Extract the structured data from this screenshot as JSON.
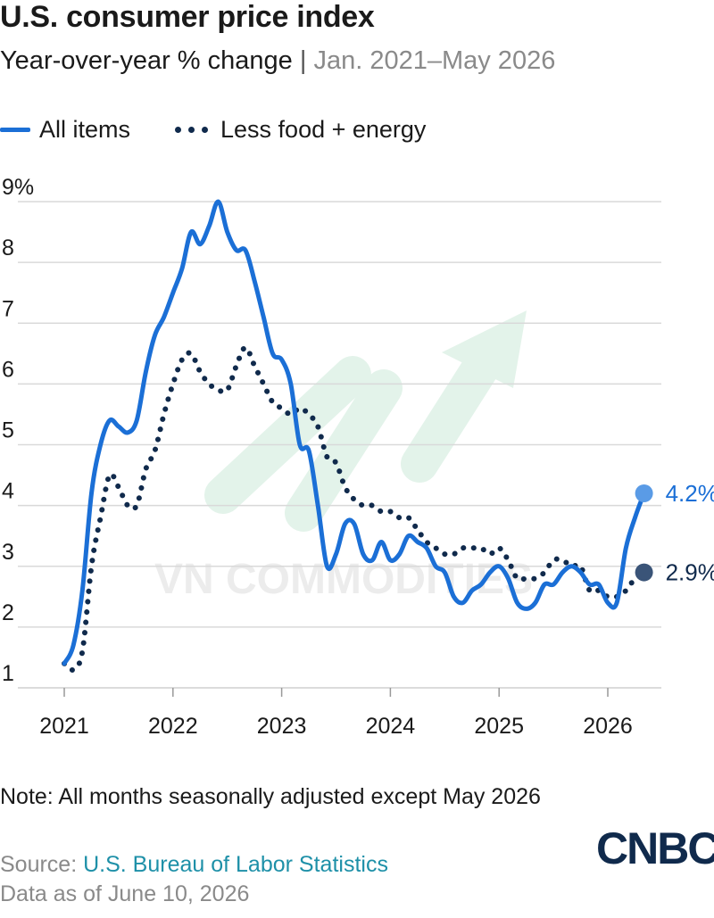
{
  "title": "U.S. consumer price index",
  "subtitle_main": "Year-over-year % change",
  "subtitle_sep": "|",
  "subtitle_range": "Jan. 2021–May 2026",
  "legend": {
    "all_items": "All items",
    "core": "Less food + energy"
  },
  "note": "Note: All months seasonally adjusted except May 2026",
  "source_prefix": "Source: ",
  "source_link": "U.S. Bureau of Labor Statistics",
  "data_as_of": "Data as of June 10, 2026",
  "logo": "CNBC",
  "watermark": "VN COMMODITIES",
  "colors": {
    "all_items": "#1b6fd6",
    "core": "#102a4c",
    "grid": "#d9d9d9"
  },
  "chart_data": {
    "type": "line",
    "title": "U.S. consumer price index",
    "subtitle": "Year-over-year % change | Jan. 2021–May 2026",
    "x_ticks": [
      "2021",
      "2022",
      "2023",
      "2024",
      "2025",
      "2026"
    ],
    "y_ticks": [
      "1",
      "2",
      "3",
      "4",
      "5",
      "6",
      "7",
      "8",
      "9%"
    ],
    "ylim": [
      1,
      9
    ],
    "xlim": [
      "2021-01",
      "2026-05"
    ],
    "grid": "horizontal",
    "legend_position": "top-left",
    "series": [
      {
        "name": "All items",
        "style": "solid",
        "end_label": "4.2%",
        "points": [
          [
            "2021-01",
            1.4
          ],
          [
            "2021-02",
            1.7
          ],
          [
            "2021-03",
            2.6
          ],
          [
            "2021-04",
            4.2
          ],
          [
            "2021-05",
            5.0
          ],
          [
            "2021-06",
            5.4
          ],
          [
            "2021-07",
            5.3
          ],
          [
            "2021-08",
            5.2
          ],
          [
            "2021-09",
            5.4
          ],
          [
            "2021-10",
            6.2
          ],
          [
            "2021-11",
            6.8
          ],
          [
            "2021-12",
            7.1
          ],
          [
            "2022-01",
            7.5
          ],
          [
            "2022-02",
            7.9
          ],
          [
            "2022-03",
            8.5
          ],
          [
            "2022-04",
            8.3
          ],
          [
            "2022-05",
            8.6
          ],
          [
            "2022-06",
            9.0
          ],
          [
            "2022-07",
            8.5
          ],
          [
            "2022-08",
            8.2
          ],
          [
            "2022-09",
            8.2
          ],
          [
            "2022-10",
            7.7
          ],
          [
            "2022-11",
            7.1
          ],
          [
            "2022-12",
            6.5
          ],
          [
            "2023-01",
            6.4
          ],
          [
            "2023-02",
            6.0
          ],
          [
            "2023-03",
            5.0
          ],
          [
            "2023-04",
            4.9
          ],
          [
            "2023-05",
            4.0
          ],
          [
            "2023-06",
            3.0
          ],
          [
            "2023-07",
            3.2
          ],
          [
            "2023-08",
            3.7
          ],
          [
            "2023-09",
            3.7
          ],
          [
            "2023-10",
            3.2
          ],
          [
            "2023-11",
            3.1
          ],
          [
            "2023-12",
            3.4
          ],
          [
            "2024-01",
            3.1
          ],
          [
            "2024-02",
            3.2
          ],
          [
            "2024-03",
            3.5
          ],
          [
            "2024-04",
            3.4
          ],
          [
            "2024-05",
            3.3
          ],
          [
            "2024-06",
            3.0
          ],
          [
            "2024-07",
            2.9
          ],
          [
            "2024-08",
            2.5
          ],
          [
            "2024-09",
            2.4
          ],
          [
            "2024-10",
            2.6
          ],
          [
            "2024-11",
            2.7
          ],
          [
            "2024-12",
            2.9
          ],
          [
            "2025-01",
            3.0
          ],
          [
            "2025-02",
            2.8
          ],
          [
            "2025-03",
            2.4
          ],
          [
            "2025-04",
            2.3
          ],
          [
            "2025-05",
            2.4
          ],
          [
            "2025-06",
            2.7
          ],
          [
            "2025-07",
            2.7
          ],
          [
            "2025-08",
            2.9
          ],
          [
            "2025-09",
            3.0
          ],
          [
            "2025-10",
            2.9
          ],
          [
            "2025-11",
            2.7
          ],
          [
            "2025-12",
            2.7
          ],
          [
            "2026-01",
            2.4
          ],
          [
            "2026-02",
            2.4
          ],
          [
            "2026-03",
            3.3
          ],
          [
            "2026-04",
            3.8
          ],
          [
            "2026-05",
            4.2
          ]
        ]
      },
      {
        "name": "Less food + energy",
        "style": "dotted",
        "end_label": "2.9%",
        "points": [
          [
            "2021-01",
            1.4
          ],
          [
            "2021-02",
            1.3
          ],
          [
            "2021-03",
            1.6
          ],
          [
            "2021-04",
            3.0
          ],
          [
            "2021-05",
            3.8
          ],
          [
            "2021-06",
            4.5
          ],
          [
            "2021-07",
            4.3
          ],
          [
            "2021-08",
            4.0
          ],
          [
            "2021-09",
            4.0
          ],
          [
            "2021-10",
            4.6
          ],
          [
            "2021-11",
            4.9
          ],
          [
            "2021-12",
            5.5
          ],
          [
            "2022-01",
            6.0
          ],
          [
            "2022-02",
            6.4
          ],
          [
            "2022-03",
            6.5
          ],
          [
            "2022-04",
            6.2
          ],
          [
            "2022-05",
            6.0
          ],
          [
            "2022-06",
            5.9
          ],
          [
            "2022-07",
            5.9
          ],
          [
            "2022-08",
            6.3
          ],
          [
            "2022-09",
            6.6
          ],
          [
            "2022-10",
            6.3
          ],
          [
            "2022-11",
            6.0
          ],
          [
            "2022-12",
            5.7
          ],
          [
            "2023-01",
            5.6
          ],
          [
            "2023-02",
            5.5
          ],
          [
            "2023-03",
            5.6
          ],
          [
            "2023-04",
            5.5
          ],
          [
            "2023-05",
            5.3
          ],
          [
            "2023-06",
            4.8
          ],
          [
            "2023-07",
            4.7
          ],
          [
            "2023-08",
            4.3
          ],
          [
            "2023-09",
            4.1
          ],
          [
            "2023-10",
            4.0
          ],
          [
            "2023-11",
            4.0
          ],
          [
            "2023-12",
            3.9
          ],
          [
            "2024-01",
            3.9
          ],
          [
            "2024-02",
            3.8
          ],
          [
            "2024-03",
            3.8
          ],
          [
            "2024-04",
            3.6
          ],
          [
            "2024-05",
            3.4
          ],
          [
            "2024-06",
            3.3
          ],
          [
            "2024-07",
            3.2
          ],
          [
            "2024-08",
            3.2
          ],
          [
            "2024-09",
            3.3
          ],
          [
            "2024-10",
            3.3
          ],
          [
            "2024-11",
            3.3
          ],
          [
            "2024-12",
            3.2
          ],
          [
            "2025-01",
            3.3
          ],
          [
            "2025-02",
            3.1
          ],
          [
            "2025-03",
            2.8
          ],
          [
            "2025-04",
            2.8
          ],
          [
            "2025-05",
            2.8
          ],
          [
            "2025-06",
            2.9
          ],
          [
            "2025-07",
            3.1
          ],
          [
            "2025-08",
            3.1
          ],
          [
            "2025-09",
            3.0
          ],
          [
            "2025-10",
            3.0
          ],
          [
            "2025-11",
            2.6
          ],
          [
            "2025-12",
            2.6
          ],
          [
            "2026-01",
            2.5
          ],
          [
            "2026-02",
            2.5
          ],
          [
            "2026-03",
            2.6
          ],
          [
            "2026-04",
            2.8
          ],
          [
            "2026-05",
            2.9
          ]
        ]
      }
    ]
  }
}
